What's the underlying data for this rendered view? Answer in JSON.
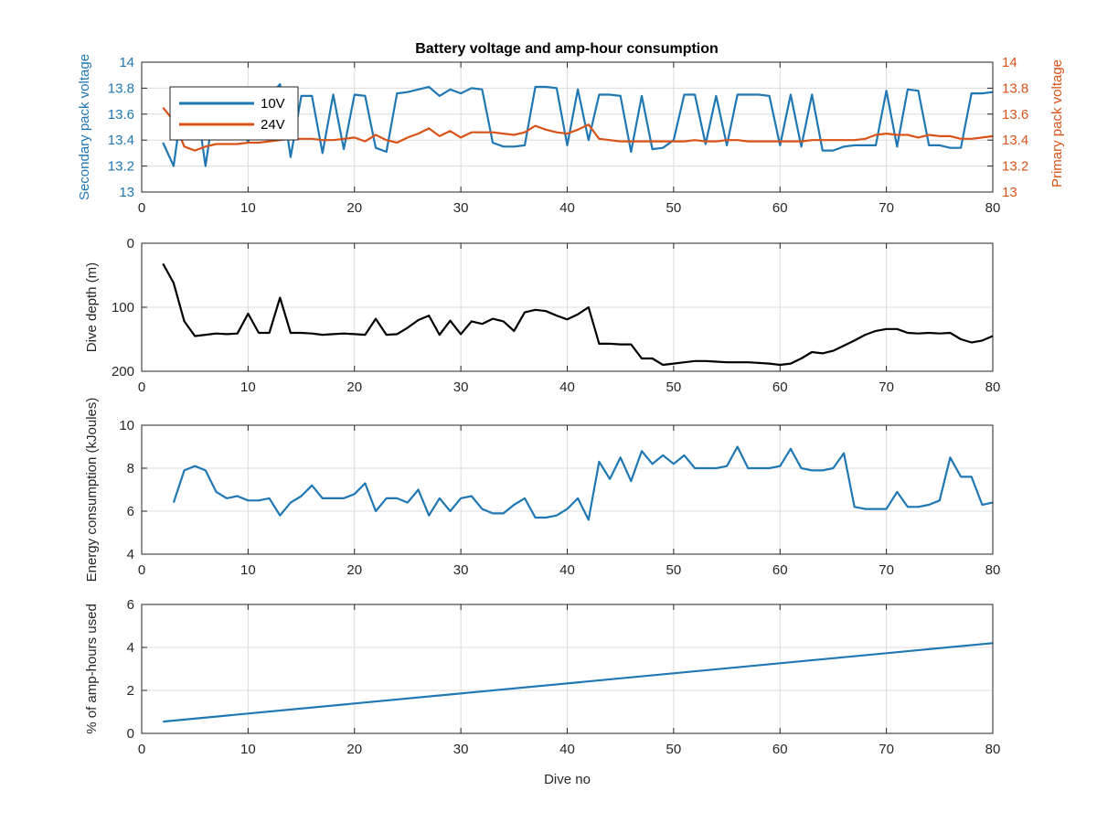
{
  "figure": {
    "title": "Battery voltage and amp-hour consumption",
    "colors": {
      "ten_v": "#1f77b4",
      "twenty_four_v": "#d95319",
      "depth": "#000000",
      "grid": "#dcdcdc",
      "axis": "#262626",
      "left_axis_color": "#1f77b4",
      "right_axis_color": "#d95319"
    }
  },
  "chart_data": [
    {
      "type": "line",
      "title": "Battery voltage and amp-hour consumption",
      "xlabel": "",
      "ylabel": "Secondary pack voltage",
      "ylabel_right": "Primary pack voltage",
      "xlim": [
        0,
        80
      ],
      "ylim": [
        13,
        14
      ],
      "ylim_right": [
        13,
        14
      ],
      "xticks": [
        "0",
        "10",
        "20",
        "30",
        "40",
        "50",
        "60",
        "70",
        "80"
      ],
      "yticks": [
        "13",
        "13.2",
        "13.4",
        "13.6",
        "13.8",
        "14"
      ],
      "yticks_right": [
        "13",
        "13.2",
        "13.4",
        "13.6",
        "13.8",
        "14"
      ],
      "grid": true,
      "legend": {
        "position": "top-left",
        "entries": [
          "10V",
          "24V"
        ]
      },
      "series": [
        {
          "name": "10V",
          "x": [
            2,
            3,
            4,
            5,
            6,
            7,
            8,
            9,
            10,
            11,
            12,
            13,
            14,
            15,
            16,
            17,
            18,
            19,
            20,
            21,
            22,
            23,
            24,
            25,
            26,
            27,
            28,
            29,
            30,
            31,
            32,
            33,
            34,
            35,
            36,
            37,
            38,
            39,
            40,
            41,
            42,
            43,
            44,
            45,
            46,
            47,
            48,
            49,
            50,
            51,
            52,
            53,
            54,
            55,
            56,
            57,
            58,
            59,
            60,
            61,
            62,
            63,
            64,
            65,
            66,
            67,
            68,
            69,
            70,
            71,
            72,
            73,
            74,
            75,
            76,
            77,
            78,
            79,
            80
          ],
          "values": [
            13.38,
            13.2,
            13.78,
            13.77,
            13.2,
            13.76,
            13.75,
            13.74,
            13.38,
            13.76,
            13.74,
            13.83,
            13.27,
            13.74,
            13.74,
            13.3,
            13.75,
            13.33,
            13.75,
            13.74,
            13.34,
            13.31,
            13.76,
            13.77,
            13.79,
            13.81,
            13.74,
            13.79,
            13.76,
            13.8,
            13.79,
            13.38,
            13.35,
            13.35,
            13.36,
            13.81,
            13.81,
            13.8,
            13.36,
            13.79,
            13.4,
            13.75,
            13.75,
            13.74,
            13.31,
            13.74,
            13.33,
            13.34,
            13.4,
            13.75,
            13.75,
            13.37,
            13.74,
            13.36,
            13.75,
            13.75,
            13.75,
            13.74,
            13.36,
            13.75,
            13.35,
            13.75,
            13.32,
            13.32,
            13.35,
            13.36,
            13.36,
            13.36,
            13.78,
            13.35,
            13.79,
            13.78,
            13.36,
            13.36,
            13.34,
            13.34,
            13.76,
            13.76,
            13.77
          ]
        },
        {
          "name": "24V",
          "x": [
            2,
            3,
            4,
            5,
            6,
            7,
            8,
            9,
            10,
            11,
            12,
            13,
            14,
            15,
            16,
            17,
            18,
            19,
            20,
            21,
            22,
            23,
            24,
            25,
            26,
            27,
            28,
            29,
            30,
            31,
            32,
            33,
            34,
            35,
            36,
            37,
            38,
            39,
            40,
            41,
            42,
            43,
            44,
            45,
            46,
            47,
            48,
            49,
            50,
            51,
            52,
            53,
            54,
            55,
            56,
            57,
            58,
            59,
            60,
            61,
            62,
            63,
            64,
            65,
            66,
            67,
            68,
            69,
            70,
            71,
            72,
            73,
            74,
            75,
            76,
            77,
            78,
            79,
            80
          ],
          "values": [
            13.65,
            13.55,
            13.35,
            13.32,
            13.35,
            13.37,
            13.37,
            13.37,
            13.38,
            13.38,
            13.39,
            13.4,
            13.41,
            13.41,
            13.41,
            13.4,
            13.4,
            13.41,
            13.42,
            13.39,
            13.44,
            13.4,
            13.38,
            13.42,
            13.45,
            13.49,
            13.43,
            13.47,
            13.42,
            13.46,
            13.46,
            13.46,
            13.45,
            13.44,
            13.46,
            13.51,
            13.48,
            13.46,
            13.45,
            13.48,
            13.52,
            13.41,
            13.4,
            13.39,
            13.39,
            13.39,
            13.39,
            13.39,
            13.39,
            13.39,
            13.4,
            13.39,
            13.39,
            13.4,
            13.4,
            13.39,
            13.39,
            13.39,
            13.39,
            13.39,
            13.39,
            13.4,
            13.4,
            13.4,
            13.4,
            13.4,
            13.41,
            13.44,
            13.45,
            13.44,
            13.44,
            13.42,
            13.44,
            13.43,
            13.43,
            13.41,
            13.41,
            13.42,
            13.43
          ]
        }
      ]
    },
    {
      "type": "line",
      "title": "",
      "xlabel": "",
      "ylabel": "Dive depth (m)",
      "xlim": [
        0,
        80
      ],
      "ylim": [
        0,
        200
      ],
      "y_reversed": true,
      "xticks": [
        "0",
        "10",
        "20",
        "30",
        "40",
        "50",
        "60",
        "70",
        "80"
      ],
      "yticks": [
        "0",
        "100",
        "200"
      ],
      "grid": true,
      "series": [
        {
          "x": [
            2,
            3,
            4,
            5,
            6,
            7,
            8,
            9,
            10,
            11,
            12,
            13,
            14,
            15,
            16,
            17,
            18,
            19,
            20,
            21,
            22,
            23,
            24,
            25,
            26,
            27,
            28,
            29,
            30,
            31,
            32,
            33,
            34,
            35,
            36,
            37,
            38,
            39,
            40,
            41,
            42,
            43,
            44,
            45,
            46,
            47,
            48,
            49,
            50,
            51,
            52,
            53,
            54,
            55,
            56,
            57,
            58,
            59,
            60,
            61,
            62,
            63,
            64,
            65,
            66,
            67,
            68,
            69,
            70,
            71,
            72,
            73,
            74,
            75,
            76,
            77,
            78,
            79,
            80
          ],
          "values": [
            32,
            62,
            122,
            145,
            143,
            141,
            142,
            141,
            110,
            140,
            140,
            85,
            140,
            140,
            141,
            143,
            142,
            141,
            142,
            143,
            118,
            143,
            142,
            132,
            120,
            113,
            143,
            121,
            142,
            122,
            126,
            118,
            122,
            137,
            108,
            104,
            106,
            113,
            119,
            111,
            100,
            157,
            157,
            158,
            158,
            180,
            180,
            190,
            188,
            186,
            184,
            184,
            185,
            186,
            186,
            186,
            187,
            188,
            190,
            188,
            180,
            170,
            172,
            168,
            160,
            152,
            143,
            137,
            134,
            134,
            140,
            141,
            140,
            141,
            140,
            150,
            155,
            152,
            145
          ]
        }
      ]
    },
    {
      "type": "line",
      "title": "",
      "xlabel": "",
      "ylabel": "Energy consumption (kJoules)",
      "xlim": [
        0,
        80
      ],
      "ylim": [
        4,
        10
      ],
      "xticks": [
        "0",
        "10",
        "20",
        "30",
        "40",
        "50",
        "60",
        "70",
        "80"
      ],
      "yticks": [
        "4",
        "6",
        "8",
        "10"
      ],
      "grid": true,
      "series": [
        {
          "x": [
            3,
            4,
            5,
            6,
            7,
            8,
            9,
            10,
            11,
            12,
            13,
            14,
            15,
            16,
            17,
            18,
            19,
            20,
            21,
            22,
            23,
            24,
            25,
            26,
            27,
            28,
            29,
            30,
            31,
            32,
            33,
            34,
            35,
            36,
            37,
            38,
            39,
            40,
            41,
            42,
            43,
            44,
            45,
            46,
            47,
            48,
            49,
            50,
            51,
            52,
            53,
            54,
            55,
            56,
            57,
            58,
            59,
            60,
            61,
            62,
            63,
            64,
            65,
            66,
            67,
            68,
            69,
            70,
            71,
            72,
            73,
            74,
            75,
            76,
            77,
            78,
            79,
            80
          ],
          "values": [
            6.4,
            7.9,
            8.1,
            7.9,
            6.9,
            6.6,
            6.7,
            6.5,
            6.5,
            6.6,
            5.8,
            6.4,
            6.7,
            7.2,
            6.6,
            6.6,
            6.6,
            6.8,
            7.3,
            6.0,
            6.6,
            6.6,
            6.4,
            7.0,
            5.8,
            6.6,
            6.0,
            6.6,
            6.7,
            6.1,
            5.9,
            5.9,
            6.3,
            6.6,
            5.7,
            5.7,
            5.8,
            6.1,
            6.6,
            5.6,
            8.3,
            7.5,
            8.5,
            7.4,
            8.8,
            8.2,
            8.6,
            8.2,
            8.6,
            8.0,
            8.0,
            8.0,
            8.1,
            9.0,
            8.0,
            8.0,
            8.0,
            8.1,
            8.9,
            8.0,
            7.9,
            7.9,
            8.0,
            8.7,
            6.2,
            6.1,
            6.1,
            6.1,
            6.9,
            6.2,
            6.2,
            6.3,
            6.5,
            8.5,
            7.6,
            7.6,
            6.3,
            6.4
          ]
        }
      ]
    },
    {
      "type": "line",
      "title": "",
      "xlabel": "Dive no",
      "ylabel": "% of amp-hours used",
      "xlim": [
        0,
        80
      ],
      "ylim": [
        0,
        6
      ],
      "xticks": [
        "0",
        "10",
        "20",
        "30",
        "40",
        "50",
        "60",
        "70",
        "80"
      ],
      "yticks": [
        "0",
        "2",
        "4",
        "6"
      ],
      "grid": true,
      "series": [
        {
          "x": [
            2,
            80
          ],
          "values": [
            0.55,
            4.2
          ]
        }
      ]
    }
  ]
}
